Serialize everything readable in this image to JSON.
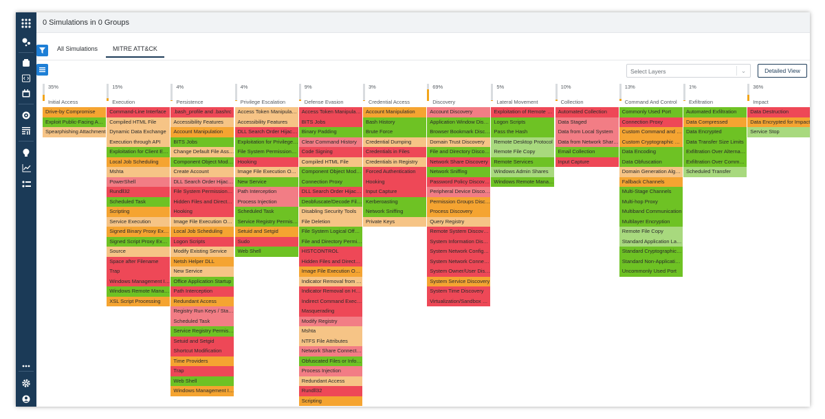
{
  "header": {
    "title": "0 Simulations in 0 Groups"
  },
  "tabs": [
    {
      "label": "All Simulations"
    },
    {
      "label": "MITRE ATT&CK"
    }
  ],
  "toolbar": {
    "select_placeholder": "Select Layers",
    "detailed_view_label": "Detailed View"
  },
  "sidebar": {
    "icons": [
      "apps-icon",
      "sliders-icon",
      "dashboard-icon",
      "code-icon",
      "calendar-icon",
      "target-icon",
      "report-icon",
      "lightbulb-icon",
      "chart-icon",
      "checklist-icon",
      "more-icon",
      "settings-icon",
      "user-icon"
    ]
  },
  "colors": {
    "c-red": "#ee4857",
    "c-pink": "#f27d85",
    "c-orange": "#f5a431",
    "c-peach": "#f6c486",
    "c-green": "#6ec224",
    "c-lgreen": "#a8d97e",
    "sidebar": "#1b3a57",
    "accent": "#1e7fd6"
  },
  "tactics": [
    {
      "name": "Initial Access",
      "percent": "35%",
      "fill": 0.35,
      "techniques": [
        {
          "t": "Drive-by Compromise",
          "c": "c-orange"
        },
        {
          "t": "Exploit Public-Facing Application",
          "c": "c-green"
        },
        {
          "t": "Spearphishing Attachment",
          "c": "c-peach"
        }
      ]
    },
    {
      "name": "Execution",
      "percent": "15%",
      "fill": 0.15,
      "techniques": [
        {
          "t": "Command-Line Interface",
          "c": "c-red"
        },
        {
          "t": "Compiled HTML File",
          "c": "c-peach"
        },
        {
          "t": "Dynamic Data Exchange",
          "c": "c-peach"
        },
        {
          "t": "Execution through API",
          "c": "c-peach"
        },
        {
          "t": "Exploitation for Client Execution",
          "c": "c-green"
        },
        {
          "t": "Local Job Scheduling",
          "c": "c-orange"
        },
        {
          "t": "Mshta",
          "c": "c-peach"
        },
        {
          "t": "PowerShell",
          "c": "c-pink"
        },
        {
          "t": "Rundll32",
          "c": "c-red"
        },
        {
          "t": "Scheduled Task",
          "c": "c-green"
        },
        {
          "t": "Scripting",
          "c": "c-orange"
        },
        {
          "t": "Service Execution",
          "c": "c-peach"
        },
        {
          "t": "Signed Binary Proxy Execution",
          "c": "c-orange"
        },
        {
          "t": "Signed Script Proxy Execution",
          "c": "c-green"
        },
        {
          "t": "Source",
          "c": "c-peach"
        },
        {
          "t": "Space after Filename",
          "c": "c-red"
        },
        {
          "t": "Trap",
          "c": "c-red"
        },
        {
          "t": "Windows Management Instrumentation",
          "c": "c-red"
        },
        {
          "t": "Windows Remote Management",
          "c": "c-green"
        },
        {
          "t": "XSL Script Processing",
          "c": "c-orange"
        }
      ]
    },
    {
      "name": "Persistence",
      "percent": "4%",
      "fill": 0.04,
      "techniques": [
        {
          "t": ".bash_profile and .bashrc",
          "c": "c-red"
        },
        {
          "t": "Accessibility Features",
          "c": "c-peach"
        },
        {
          "t": "Account Manipulation",
          "c": "c-orange"
        },
        {
          "t": "BITS Jobs",
          "c": "c-green"
        },
        {
          "t": "Change Default File Association",
          "c": "c-peach"
        },
        {
          "t": "Component Object Model Hijacking",
          "c": "c-green"
        },
        {
          "t": "Create Account",
          "c": "c-peach"
        },
        {
          "t": "DLL Search Order Hijacking",
          "c": "c-pink"
        },
        {
          "t": "File System Permissions Weakness",
          "c": "c-red"
        },
        {
          "t": "Hidden Files and Directories",
          "c": "c-red"
        },
        {
          "t": "Hooking",
          "c": "c-red"
        },
        {
          "t": "Image File Execution Options Injection",
          "c": "c-peach"
        },
        {
          "t": "Local Job Scheduling",
          "c": "c-orange"
        },
        {
          "t": "Logon Scripts",
          "c": "c-red"
        },
        {
          "t": "Modify Existing Service",
          "c": "c-peach"
        },
        {
          "t": "Netsh Helper DLL",
          "c": "c-orange"
        },
        {
          "t": "New Service",
          "c": "c-peach"
        },
        {
          "t": "Office Application Startup",
          "c": "c-green"
        },
        {
          "t": "Path Interception",
          "c": "c-red"
        },
        {
          "t": "Redundant Access",
          "c": "c-orange"
        },
        {
          "t": "Registry Run Keys / Startup Folder",
          "c": "c-pink"
        },
        {
          "t": "Scheduled Task",
          "c": "c-pink"
        },
        {
          "t": "Service Registry Permissions Weakness",
          "c": "c-green"
        },
        {
          "t": "Setuid and Setgid",
          "c": "c-red"
        },
        {
          "t": "Shortcut Modification",
          "c": "c-red"
        },
        {
          "t": "Time Providers",
          "c": "c-orange"
        },
        {
          "t": "Trap",
          "c": "c-red"
        },
        {
          "t": "Web Shell",
          "c": "c-green"
        },
        {
          "t": "Windows Management Instrumentation Event Subscription",
          "c": "c-orange"
        }
      ]
    },
    {
      "name": "Privilege Escalation",
      "percent": "4%",
      "fill": 0.04,
      "techniques": [
        {
          "t": "Access Token Manipulation",
          "c": "c-peach"
        },
        {
          "t": "Accessibility Features",
          "c": "c-peach"
        },
        {
          "t": "DLL Search Order Hijacking",
          "c": "c-red"
        },
        {
          "t": "Exploitation for Privilege Escalation",
          "c": "c-green"
        },
        {
          "t": "File System Permissions Weakness",
          "c": "c-green"
        },
        {
          "t": "Hooking",
          "c": "c-red"
        },
        {
          "t": "Image File Execution Options Injection",
          "c": "c-peach"
        },
        {
          "t": "New Service",
          "c": "c-green"
        },
        {
          "t": "Path Interception",
          "c": "c-pink"
        },
        {
          "t": "Process Injection",
          "c": "c-pink"
        },
        {
          "t": "Scheduled Task",
          "c": "c-green"
        },
        {
          "t": "Service Registry Permissions Weakness",
          "c": "c-green"
        },
        {
          "t": "Setuid and Setgid",
          "c": "c-orange"
        },
        {
          "t": "Sudo",
          "c": "c-red"
        },
        {
          "t": "Web Shell",
          "c": "c-green"
        }
      ]
    },
    {
      "name": "Defense Evasion",
      "percent": "9%",
      "fill": 0.09,
      "techniques": [
        {
          "t": "Access Token Manipulation",
          "c": "c-red"
        },
        {
          "t": "BITS Jobs",
          "c": "c-red"
        },
        {
          "t": "Binary Padding",
          "c": "c-green"
        },
        {
          "t": "Clear Command History",
          "c": "c-pink"
        },
        {
          "t": "Code Signing",
          "c": "c-red"
        },
        {
          "t": "Compiled HTML File",
          "c": "c-peach"
        },
        {
          "t": "Component Object Model Hijacking",
          "c": "c-green"
        },
        {
          "t": "Connection Proxy",
          "c": "c-green"
        },
        {
          "t": "DLL Search Order Hijacking",
          "c": "c-red"
        },
        {
          "t": "Deobfuscate/Decode Files or Information",
          "c": "c-green"
        },
        {
          "t": "Disabling Security Tools",
          "c": "c-peach"
        },
        {
          "t": "File Deletion",
          "c": "c-peach"
        },
        {
          "t": "File System Logical Offsets",
          "c": "c-green"
        },
        {
          "t": "File and Directory Permissions Modification",
          "c": "c-green"
        },
        {
          "t": "HISTCONTROL",
          "c": "c-red"
        },
        {
          "t": "Hidden Files and Directories",
          "c": "c-red"
        },
        {
          "t": "Image File Execution Options Injection",
          "c": "c-orange"
        },
        {
          "t": "Indicator Removal from Tools",
          "c": "c-peach"
        },
        {
          "t": "Indicator Removal on Host",
          "c": "c-red"
        },
        {
          "t": "Indirect Command Execution",
          "c": "c-red"
        },
        {
          "t": "Masquerading",
          "c": "c-red"
        },
        {
          "t": "Modify Registry",
          "c": "c-pink"
        },
        {
          "t": "Mshta",
          "c": "c-peach"
        },
        {
          "t": "NTFS File Attributes",
          "c": "c-peach"
        },
        {
          "t": "Network Share Connection Removal",
          "c": "c-pink"
        },
        {
          "t": "Obfuscated Files or Information",
          "c": "c-green"
        },
        {
          "t": "Process Injection",
          "c": "c-pink"
        },
        {
          "t": "Redundant Access",
          "c": "c-peach"
        },
        {
          "t": "Rundll32",
          "c": "c-red"
        },
        {
          "t": "Scripting",
          "c": "c-orange"
        }
      ]
    },
    {
      "name": "Credential Access",
      "percent": "3%",
      "fill": 0.03,
      "techniques": [
        {
          "t": "Account Manipulation",
          "c": "c-orange"
        },
        {
          "t": "Bash History",
          "c": "c-green"
        },
        {
          "t": "Brute Force",
          "c": "c-green"
        },
        {
          "t": "Credential Dumping",
          "c": "c-peach"
        },
        {
          "t": "Credentials in Files",
          "c": "c-red"
        },
        {
          "t": "Credentials in Registry",
          "c": "c-peach"
        },
        {
          "t": "Forced Authentication",
          "c": "c-red"
        },
        {
          "t": "Hooking",
          "c": "c-red"
        },
        {
          "t": "Input Capture",
          "c": "c-red"
        },
        {
          "t": "Kerberoasting",
          "c": "c-green"
        },
        {
          "t": "Network Sniffing",
          "c": "c-green"
        },
        {
          "t": "Private Keys",
          "c": "c-peach"
        }
      ]
    },
    {
      "name": "Discovery",
      "percent": "69%",
      "fill": 0.69,
      "techniques": [
        {
          "t": "Account Discovery",
          "c": "c-pink"
        },
        {
          "t": "Application Window Discovery",
          "c": "c-green"
        },
        {
          "t": "Browser Bookmark Discovery",
          "c": "c-green"
        },
        {
          "t": "Domain Trust Discovery",
          "c": "c-peach"
        },
        {
          "t": "File and Directory Discovery",
          "c": "c-green"
        },
        {
          "t": "Network Share Discovery",
          "c": "c-red"
        },
        {
          "t": "Network Sniffing",
          "c": "c-green"
        },
        {
          "t": "Password Policy Discovery",
          "c": "c-red"
        },
        {
          "t": "Peripheral Device Discovery",
          "c": "c-pink"
        },
        {
          "t": "Permission Groups Discovery",
          "c": "c-orange"
        },
        {
          "t": "Process Discovery",
          "c": "c-orange"
        },
        {
          "t": "Query Registry",
          "c": "c-peach"
        },
        {
          "t": "Remote System Discovery",
          "c": "c-red"
        },
        {
          "t": "System Information Discovery",
          "c": "c-red"
        },
        {
          "t": "System Network Configuration Discovery",
          "c": "c-red"
        },
        {
          "t": "System Network Connections Discovery",
          "c": "c-red"
        },
        {
          "t": "System Owner/User Discovery",
          "c": "c-red"
        },
        {
          "t": "System Service Discovery",
          "c": "c-orange"
        },
        {
          "t": "System Time Discovery",
          "c": "c-red"
        },
        {
          "t": "Virtualization/Sandbox Evasion",
          "c": "c-red"
        }
      ]
    },
    {
      "name": "Lateral Movement",
      "percent": "5%",
      "fill": 0.05,
      "techniques": [
        {
          "t": "Exploitation of Remote Services",
          "c": "c-red"
        },
        {
          "t": "Logon Scripts",
          "c": "c-green"
        },
        {
          "t": "Pass the Hash",
          "c": "c-green"
        },
        {
          "t": "Remote Desktop Protocol",
          "c": "c-lgreen"
        },
        {
          "t": "Remote File Copy",
          "c": "c-lgreen"
        },
        {
          "t": "Remote Services",
          "c": "c-green"
        },
        {
          "t": "Windows Admin Shares",
          "c": "c-lgreen"
        },
        {
          "t": "Windows Remote Management",
          "c": "c-green"
        }
      ]
    },
    {
      "name": "Collection",
      "percent": "10%",
      "fill": 0.1,
      "techniques": [
        {
          "t": "Automated Collection",
          "c": "c-red"
        },
        {
          "t": "Data Staged",
          "c": "c-pink"
        },
        {
          "t": "Data from Local System",
          "c": "c-pink"
        },
        {
          "t": "Data from Network Shared Drive",
          "c": "c-pink"
        },
        {
          "t": "Email Collection",
          "c": "c-green"
        },
        {
          "t": "Input Capture",
          "c": "c-red"
        }
      ]
    },
    {
      "name": "Command And Control",
      "percent": "13%",
      "fill": 0.13,
      "techniques": [
        {
          "t": "Commonly Used Port",
          "c": "c-green"
        },
        {
          "t": "Connection Proxy",
          "c": "c-red"
        },
        {
          "t": "Custom Command and Control Protocol",
          "c": "c-orange"
        },
        {
          "t": "Custom Cryptographic Protocol",
          "c": "c-orange"
        },
        {
          "t": "Data Encoding",
          "c": "c-green"
        },
        {
          "t": "Data Obfuscation",
          "c": "c-green"
        },
        {
          "t": "Domain Generation Algorithms",
          "c": "c-peach"
        },
        {
          "t": "Fallback Channels",
          "c": "c-orange"
        },
        {
          "t": "Multi-Stage Channels",
          "c": "c-green"
        },
        {
          "t": "Multi-hop Proxy",
          "c": "c-green"
        },
        {
          "t": "Multiband Communication",
          "c": "c-green"
        },
        {
          "t": "Multilayer Encryption",
          "c": "c-green"
        },
        {
          "t": "Remote File Copy",
          "c": "c-lgreen"
        },
        {
          "t": "Standard Application Layer Protocol",
          "c": "c-lgreen"
        },
        {
          "t": "Standard Cryptographic Protocol",
          "c": "c-green"
        },
        {
          "t": "Standard Non-Application Layer Protocol",
          "c": "c-green"
        },
        {
          "t": "Uncommonly Used Port",
          "c": "c-green"
        }
      ]
    },
    {
      "name": "Exfiltration",
      "percent": "1%",
      "fill": 0.01,
      "techniques": [
        {
          "t": "Automated Exfiltration",
          "c": "c-green"
        },
        {
          "t": "Data Compressed",
          "c": "c-orange"
        },
        {
          "t": "Data Encrypted",
          "c": "c-green"
        },
        {
          "t": "Data Transfer Size Limits",
          "c": "c-green"
        },
        {
          "t": "Exfiltration Over Alternative Protocol",
          "c": "c-green"
        },
        {
          "t": "Exfiltration Over Command and Control Channel",
          "c": "c-green"
        },
        {
          "t": "Scheduled Transfer",
          "c": "c-lgreen"
        }
      ]
    },
    {
      "name": "Impact",
      "percent": "36%",
      "fill": 0.36,
      "techniques": [
        {
          "t": "Data Destruction",
          "c": "c-red"
        },
        {
          "t": "Data Encrypted for Impact",
          "c": "c-orange"
        },
        {
          "t": "Service Stop",
          "c": "c-lgreen"
        }
      ]
    }
  ]
}
